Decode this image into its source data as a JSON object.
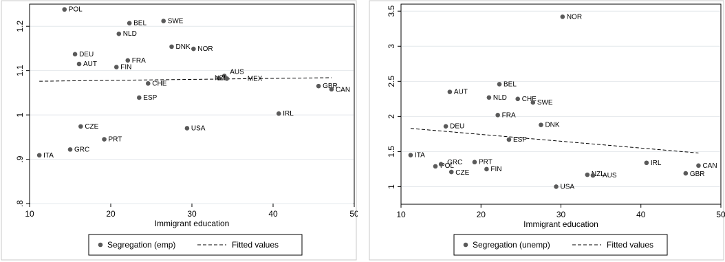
{
  "chart_data": [
    {
      "type": "scatter",
      "xlabel": "Immigrant education",
      "ylabel": "",
      "xlim": [
        10,
        50
      ],
      "ylim": [
        0.8,
        1.25
      ],
      "x_ticks": [
        10,
        20,
        30,
        40,
        50
      ],
      "y_ticks": [
        0.8,
        0.9,
        1.0,
        1.1,
        1.2
      ],
      "y_tick_labels": [
        ".8",
        ".9",
        "1",
        "1.1",
        "1.2"
      ],
      "grid": true,
      "legend": {
        "position": "bottom",
        "entries": [
          "Segregation (emp)",
          "Fitted values"
        ]
      },
      "series": [
        {
          "name": "Segregation (emp)",
          "points": [
            {
              "label": "POL",
              "x": 14.3,
              "y": 1.238
            },
            {
              "label": "BEL",
              "x": 22.3,
              "y": 1.207
            },
            {
              "label": "SWE",
              "x": 26.5,
              "y": 1.212
            },
            {
              "label": "NLD",
              "x": 21.0,
              "y": 1.183
            },
            {
              "label": "DNK",
              "x": 27.5,
              "y": 1.154
            },
            {
              "label": "NOR",
              "x": 30.2,
              "y": 1.149
            },
            {
              "label": "DEU",
              "x": 15.6,
              "y": 1.137
            },
            {
              "label": "AUT",
              "x": 16.1,
              "y": 1.115
            },
            {
              "label": "FRA",
              "x": 22.1,
              "y": 1.123
            },
            {
              "label": "FIN",
              "x": 20.7,
              "y": 1.108
            },
            {
              "label": "AUS",
              "x": 34.0,
              "y": 1.088
            },
            {
              "label": "NZL",
              "x": 33.3,
              "y": 1.083
            },
            {
              "label": "MEX",
              "x": 34.3,
              "y": 1.082
            },
            {
              "label": "CHE",
              "x": 24.6,
              "y": 1.071
            },
            {
              "label": "GBR",
              "x": 45.6,
              "y": 1.065
            },
            {
              "label": "CAN",
              "x": 47.2,
              "y": 1.058
            },
            {
              "label": "ESP",
              "x": 23.5,
              "y": 1.039
            },
            {
              "label": "IRL",
              "x": 40.7,
              "y": 1.003
            },
            {
              "label": "CZE",
              "x": 16.3,
              "y": 0.974
            },
            {
              "label": "USA",
              "x": 29.4,
              "y": 0.97
            },
            {
              "label": "PRT",
              "x": 19.2,
              "y": 0.945
            },
            {
              "label": "GRC",
              "x": 15.0,
              "y": 0.922
            },
            {
              "label": "ITA",
              "x": 11.2,
              "y": 0.909
            }
          ]
        },
        {
          "name": "Fitted values",
          "line": [
            [
              11.2,
              1.076
            ],
            [
              47.2,
              1.084
            ]
          ]
        }
      ]
    },
    {
      "type": "scatter",
      "xlabel": "Immigrant education",
      "ylabel": "",
      "xlim": [
        10,
        50
      ],
      "ylim": [
        0.75,
        3.6
      ],
      "x_ticks": [
        10,
        20,
        30,
        40,
        50
      ],
      "y_ticks": [
        1,
        1.5,
        2,
        2.5,
        3,
        3.5
      ],
      "y_tick_labels": [
        "1",
        "1.5",
        "2",
        "2.5",
        "3",
        "3.5"
      ],
      "grid": true,
      "legend": {
        "position": "bottom",
        "entries": [
          "Segregation (unemp)",
          "Fitted values"
        ]
      },
      "series": [
        {
          "name": "Segregation (unemp)",
          "points": [
            {
              "label": "NOR",
              "x": 30.2,
              "y": 3.42
            },
            {
              "label": "BEL",
              "x": 22.3,
              "y": 2.46
            },
            {
              "label": "AUT",
              "x": 16.1,
              "y": 2.35
            },
            {
              "label": "NLD",
              "x": 21.0,
              "y": 2.27
            },
            {
              "label": "CHE",
              "x": 24.6,
              "y": 2.25
            },
            {
              "label": "SWE",
              "x": 26.5,
              "y": 2.2
            },
            {
              "label": "FRA",
              "x": 22.1,
              "y": 2.02
            },
            {
              "label": "DNK",
              "x": 27.5,
              "y": 1.88
            },
            {
              "label": "DEU",
              "x": 15.6,
              "y": 1.86
            },
            {
              "label": "ESP",
              "x": 23.5,
              "y": 1.67
            },
            {
              "label": "ITA",
              "x": 11.2,
              "y": 1.45
            },
            {
              "label": "PRT",
              "x": 19.2,
              "y": 1.35
            },
            {
              "label": "IRL",
              "x": 40.7,
              "y": 1.34
            },
            {
              "label": "POL",
              "x": 14.3,
              "y": 1.29
            },
            {
              "label": "GRC",
              "x": 15.0,
              "y": 1.32
            },
            {
              "label": "CAN",
              "x": 47.2,
              "y": 1.3
            },
            {
              "label": "CZE",
              "x": 16.3,
              "y": 1.21
            },
            {
              "label": "FIN",
              "x": 20.7,
              "y": 1.25
            },
            {
              "label": "GBR",
              "x": 45.6,
              "y": 1.19
            },
            {
              "label": "NZL",
              "x": 33.3,
              "y": 1.17
            },
            {
              "label": "AUS",
              "x": 34.0,
              "y": 1.16
            },
            {
              "label": "USA",
              "x": 29.4,
              "y": 1.0
            }
          ]
        },
        {
          "name": "Fitted values",
          "line": [
            [
              11.2,
              1.83
            ],
            [
              47.2,
              1.48
            ]
          ]
        }
      ]
    }
  ]
}
